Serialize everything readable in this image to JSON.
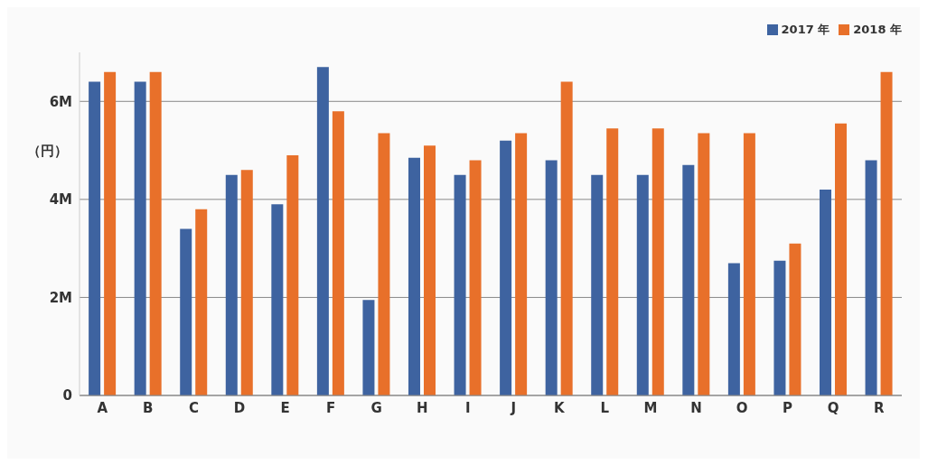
{
  "chart_data": {
    "type": "bar",
    "ylabel": "（円）",
    "categories": [
      "A",
      "B",
      "C",
      "D",
      "E",
      "F",
      "G",
      "H",
      "I",
      "J",
      "K",
      "L",
      "M",
      "N",
      "O",
      "P",
      "Q",
      "R"
    ],
    "series": [
      {
        "name": "2017 年",
        "color": "#3e63a0",
        "values": [
          6.4,
          6.4,
          3.4,
          4.5,
          3.9,
          6.7,
          1.95,
          4.85,
          4.5,
          5.2,
          4.8,
          4.5,
          4.5,
          4.7,
          2.7,
          2.75,
          4.2,
          4.8
        ]
      },
      {
        "name": "2018 年",
        "color": "#e8702a",
        "values": [
          6.6,
          6.6,
          3.8,
          4.6,
          4.9,
          5.8,
          5.35,
          5.1,
          4.8,
          5.35,
          6.4,
          5.45,
          5.45,
          5.35,
          5.35,
          3.1,
          5.55,
          6.6
        ]
      }
    ],
    "ylim": [
      0,
      7
    ],
    "yticks": [
      0,
      {
        "value": 2,
        "label": "2M"
      },
      {
        "value": 4,
        "label": "4M"
      },
      {
        "value": 6,
        "label": "6M"
      }
    ],
    "grid": "y",
    "legend": "top right"
  }
}
